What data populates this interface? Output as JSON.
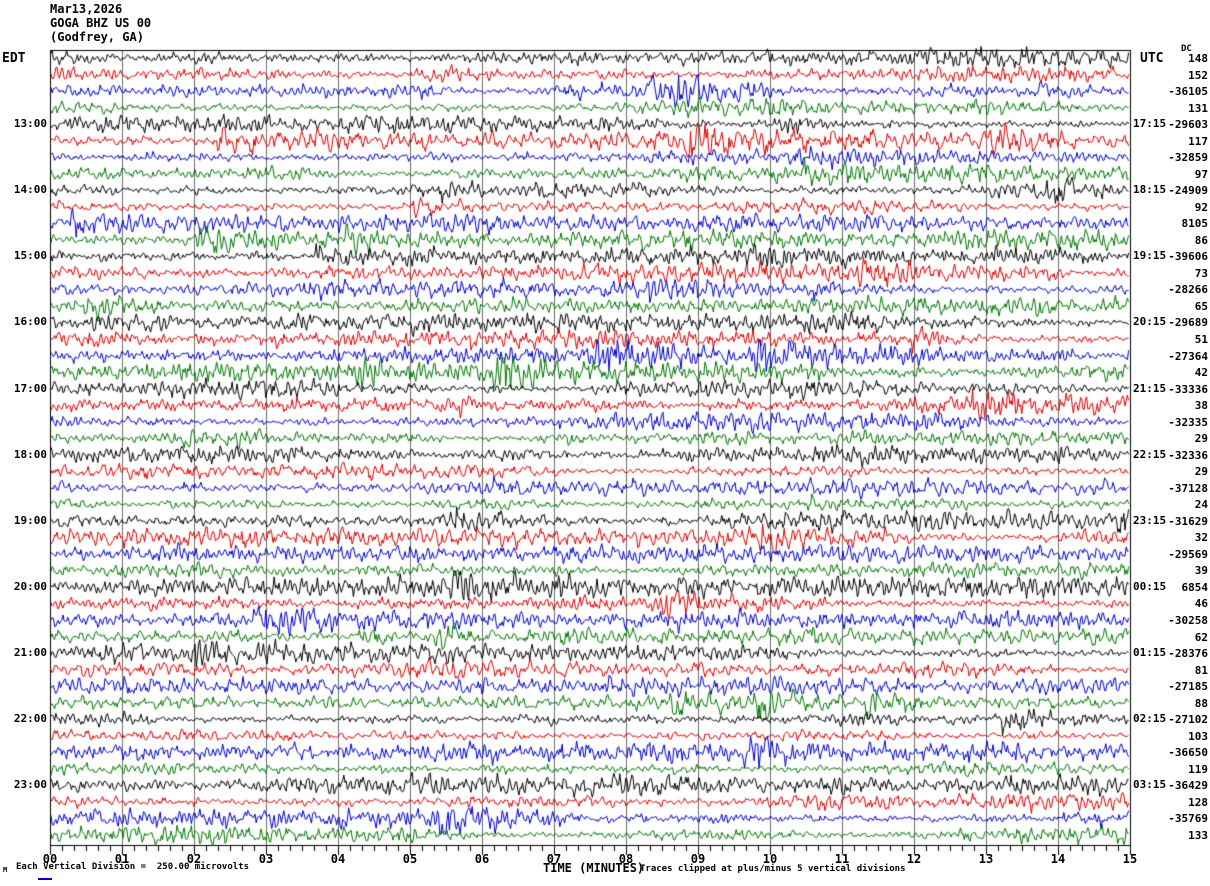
{
  "header": {
    "date": "Mar13,2026",
    "station": "GOGA BHZ US 00",
    "location": "(Godfrey, GA)",
    "left_tz_label": "EDT",
    "right_tz_label": "UTC",
    "dc_column_label": "DC"
  },
  "left_time_labels": [
    "13:00",
    "14:00",
    "15:00",
    "16:00",
    "17:00",
    "18:00",
    "19:00",
    "20:00",
    "21:00",
    "22:00",
    "23:00"
  ],
  "right_time_labels": [
    "17:15",
    "18:15",
    "19:15",
    "20:15",
    "21:15",
    "22:15",
    "23:15",
    "00:15",
    "01:15",
    "02:15",
    "03:15"
  ],
  "dc_values": [
    "148",
    "152",
    "-36105",
    "131",
    "-29603",
    "117",
    "-32859",
    "97",
    "-24909",
    "92",
    "8105",
    "86",
    "-39606",
    "73",
    "-28266",
    "65",
    "-29689",
    "51",
    "-27364",
    "42",
    "-33336",
    "38",
    "-32335",
    "29",
    "-32336",
    "29",
    "-37128",
    "24",
    "-31629",
    "32",
    "-29569",
    "39",
    "6854",
    "46",
    "-30258",
    "62",
    "-28376",
    "81",
    "-27185",
    "88",
    "-27102",
    "103",
    "-36650",
    "119",
    "-36429",
    "128",
    "-35769",
    "133"
  ],
  "x_axis": {
    "tick_labels": [
      "00",
      "01",
      "02",
      "03",
      "04",
      "05",
      "06",
      "07",
      "08",
      "09",
      "10",
      "11",
      "12",
      "13",
      "14",
      "15"
    ],
    "caption": "TIME (MINUTES)"
  },
  "footer": {
    "corner_glyph": "M",
    "scale_note": "Each Vertical Division =  250.00 microvolts",
    "clip_note": "Traces clipped at plus/minus 5 vertical divisions"
  },
  "colors": {
    "trace_black": "#000000",
    "trace_red": "#dd0000",
    "trace_blue": "#0000cc",
    "trace_green": "#007700",
    "grid": "#6e6e6e",
    "frame": "#000000",
    "background": "#ffffff"
  },
  "chart_data": {
    "type": "line",
    "subtype": "helicorder-seismogram",
    "title": "GOGA BHZ US 00 (Godfrey, GA) Mar13,2026",
    "xlabel": "TIME (MINUTES)",
    "x_range_minutes": [
      0,
      15
    ],
    "x_tick_labels": [
      "00",
      "01",
      "02",
      "03",
      "04",
      "05",
      "06",
      "07",
      "08",
      "09",
      "10",
      "11",
      "12",
      "13",
      "14",
      "15"
    ],
    "minutes_per_line": 15,
    "num_lines": 48,
    "first_line_start_edt": "12:00",
    "left_axis": {
      "label": "EDT",
      "hour_ticks": [
        "13:00",
        "14:00",
        "15:00",
        "16:00",
        "17:00",
        "18:00",
        "19:00",
        "20:00",
        "21:00",
        "22:00",
        "23:00"
      ]
    },
    "right_axis": {
      "label": "UTC",
      "hour_ticks": [
        "17:15",
        "18:15",
        "19:15",
        "20:15",
        "21:15",
        "22:15",
        "23:15",
        "00:15",
        "01:15",
        "02:15",
        "03:15"
      ]
    },
    "trace_color_cycle": [
      "#000000",
      "#dd0000",
      "#0000cc",
      "#007700"
    ],
    "dc_offsets_per_line": [
      148,
      152,
      -36105,
      131,
      -29603,
      117,
      -32859,
      97,
      -24909,
      92,
      8105,
      86,
      -39606,
      73,
      -28266,
      65,
      -29689,
      51,
      -27364,
      42,
      -33336,
      38,
      -32335,
      29,
      -32336,
      29,
      -37128,
      24,
      -31629,
      32,
      -29569,
      39,
      6854,
      46,
      -30258,
      62,
      -28376,
      81,
      -27185,
      88,
      -27102,
      103,
      -36650,
      119,
      -36429,
      128,
      -35769,
      133
    ],
    "y_scale_note": "Each Vertical Division =  250.00 microvolts",
    "clipping_note": "Traces clipped at plus/minus 5 vertical divisions",
    "grid": "vertical gridlines at every minute",
    "waveform_note": "continuous ambient seismic noise on all 48 15-minute traces; no labeled events"
  }
}
